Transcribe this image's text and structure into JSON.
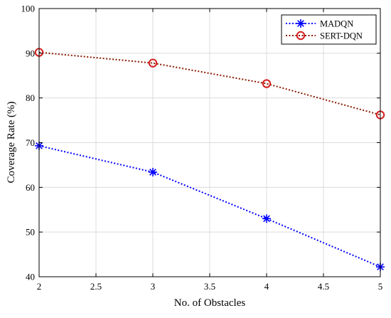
{
  "chart_data": {
    "type": "line",
    "xlabel": "No. of Obstacles",
    "ylabel": "Coverage Rate (%)",
    "xlim": [
      2,
      5
    ],
    "ylim": [
      40,
      100
    ],
    "xticks": [
      2,
      2.5,
      3,
      3.5,
      4,
      4.5,
      5
    ],
    "yticks": [
      40,
      50,
      60,
      70,
      80,
      90,
      100
    ],
    "xtick_labels": [
      "2",
      "2.5",
      "3",
      "3.5",
      "4",
      "4.5",
      "5"
    ],
    "ytick_labels": [
      "40",
      "50",
      "60",
      "70",
      "80",
      "90",
      "100"
    ],
    "grid": true,
    "legend_position": "top-right",
    "x": [
      2,
      3,
      4,
      5
    ],
    "series": [
      {
        "name": "MADQN",
        "values": [
          69.3,
          63.4,
          53.0,
          42.2
        ],
        "color": "#0000ff",
        "marker": "asterisk",
        "line_style": "dotted"
      },
      {
        "name": "SERT-DQN",
        "values": [
          90.2,
          87.8,
          83.2,
          76.2
        ],
        "color": "#8b1a00",
        "marker_color": "#d42020",
        "marker": "circle",
        "line_style": "dotted"
      }
    ]
  }
}
